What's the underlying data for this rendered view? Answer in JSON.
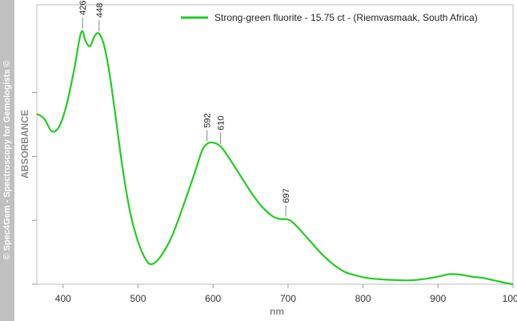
{
  "watermark": "© Spec4Gem - Spectroscopy for Gemologists ©",
  "chart_data": {
    "type": "line",
    "xlabel": "nm",
    "ylabel": "ABSORBANCE",
    "xlim": [
      365,
      1000
    ],
    "ylim": [
      0,
      1
    ],
    "x_ticks": [
      400,
      500,
      600,
      700,
      800,
      900,
      1000
    ],
    "x_tick_labels": [
      "400",
      "500",
      "600",
      "700",
      "800",
      "900",
      "1000"
    ],
    "y_ticks": [
      0.0,
      0.255,
      0.51,
      0.765
    ],
    "grid": false,
    "legend_position": "top-right",
    "series": [
      {
        "name": "Strong-green fluorite - 15.75 ct - (Riemvasmaak, South Africa)",
        "color": "#22cc22",
        "x": [
          365,
          375,
          385,
          395,
          405,
          415,
          422,
          426,
          430,
          436,
          442,
          448,
          455,
          462,
          470,
          480,
          490,
          500,
          510,
          518,
          530,
          545,
          560,
          575,
          585,
          592,
          600,
          610,
          620,
          635,
          650,
          665,
          680,
          690,
          697,
          705,
          715,
          730,
          745,
          760,
          775,
          790,
          805,
          820,
          840,
          860,
          880,
          900,
          915,
          930,
          945,
          960,
          975,
          990,
          1000
        ],
        "y": [
          0.68,
          0.66,
          0.61,
          0.63,
          0.72,
          0.86,
          0.98,
          1.01,
          0.97,
          0.95,
          0.99,
          1.0,
          0.95,
          0.84,
          0.67,
          0.45,
          0.28,
          0.17,
          0.1,
          0.08,
          0.11,
          0.19,
          0.31,
          0.44,
          0.53,
          0.56,
          0.565,
          0.55,
          0.51,
          0.44,
          0.37,
          0.31,
          0.27,
          0.26,
          0.26,
          0.25,
          0.22,
          0.17,
          0.12,
          0.08,
          0.05,
          0.035,
          0.025,
          0.02,
          0.017,
          0.015,
          0.02,
          0.03,
          0.04,
          0.038,
          0.03,
          0.025,
          0.015,
          0.005,
          0.0
        ]
      }
    ],
    "peak_annotations": [
      {
        "x": 426,
        "label": "426"
      },
      {
        "x": 448,
        "label": "448"
      },
      {
        "x": 592,
        "label": "592"
      },
      {
        "x": 610,
        "label": "610"
      },
      {
        "x": 697,
        "label": "697"
      }
    ]
  }
}
